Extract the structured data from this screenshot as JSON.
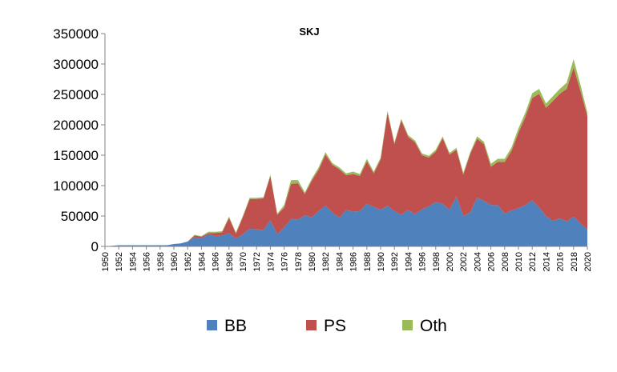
{
  "chart_data": {
    "type": "area",
    "stacked": true,
    "title": "SKJ",
    "xlabel": "",
    "ylabel": "",
    "ylim": [
      0,
      350000
    ],
    "yticks": [
      "0",
      "50000",
      "100000",
      "150000",
      "200000",
      "250000",
      "300000",
      "350000"
    ],
    "grid": false,
    "legend_position": "bottom",
    "x": [
      1950,
      1951,
      1952,
      1953,
      1954,
      1955,
      1956,
      1957,
      1958,
      1959,
      1960,
      1961,
      1962,
      1963,
      1964,
      1965,
      1966,
      1967,
      1968,
      1969,
      1970,
      1971,
      1972,
      1973,
      1974,
      1975,
      1976,
      1977,
      1978,
      1979,
      1980,
      1981,
      1982,
      1983,
      1984,
      1985,
      1986,
      1987,
      1988,
      1989,
      1990,
      1991,
      1992,
      1993,
      1994,
      1995,
      1996,
      1997,
      1998,
      1999,
      2000,
      2001,
      2002,
      2003,
      2004,
      2005,
      2006,
      2007,
      2008,
      2009,
      2010,
      2011,
      2012,
      2013,
      2014,
      2015,
      2016,
      2017,
      2018,
      2019,
      2020
    ],
    "xticks": [
      "1950",
      "1952",
      "1954",
      "1956",
      "1958",
      "1960",
      "1962",
      "1964",
      "1966",
      "1968",
      "1970",
      "1972",
      "1974",
      "1976",
      "1978",
      "1980",
      "1982",
      "1984",
      "1986",
      "1988",
      "1990",
      "1992",
      "1994",
      "1996",
      "1998",
      "2000",
      "2002",
      "2004",
      "2006",
      "2008",
      "2010",
      "2012",
      "2014",
      "2016",
      "2018",
      "2020"
    ],
    "series": [
      {
        "name": "BB",
        "color": "#4f81bd",
        "values": [
          0,
          1000,
          2000,
          2000,
          2000,
          2000,
          2000,
          2000,
          2000,
          2000,
          4000,
          5000,
          8000,
          15000,
          13000,
          20000,
          17000,
          18000,
          22000,
          13000,
          20000,
          29000,
          28000,
          27000,
          43000,
          20000,
          31000,
          45000,
          44000,
          51000,
          48000,
          58000,
          67000,
          56000,
          47000,
          60000,
          57000,
          58000,
          70000,
          65000,
          60000,
          67000,
          58000,
          52000,
          60000,
          53000,
          61000,
          66000,
          73000,
          70000,
          60000,
          82000,
          50000,
          56000,
          80000,
          75000,
          68000,
          68000,
          54000,
          59000,
          63000,
          68000,
          76000,
          64000,
          50000,
          42000,
          46000,
          41000,
          49000,
          38000,
          28000
        ]
      },
      {
        "name": "PS",
        "color": "#c0504d",
        "values": [
          0,
          0,
          0,
          0,
          0,
          0,
          0,
          0,
          0,
          0,
          0,
          0,
          0,
          3000,
          3000,
          2000,
          5000,
          5000,
          25000,
          8000,
          28000,
          49000,
          50000,
          52000,
          73000,
          32000,
          33000,
          58000,
          60000,
          35000,
          60000,
          68000,
          84000,
          78000,
          80000,
          57000,
          62000,
          58000,
          70000,
          55000,
          83000,
          153000,
          110000,
          155000,
          120000,
          118000,
          89000,
          80000,
          83000,
          108000,
          91000,
          77000,
          68000,
          96000,
          97000,
          93000,
          63000,
          71000,
          85000,
          98000,
          124000,
          145000,
          168000,
          187000,
          178000,
          197000,
          205000,
          218000,
          245000,
          218000,
          186000
        ]
      },
      {
        "name": "Oth",
        "color": "#9bbb59",
        "values": [
          0,
          0,
          0,
          0,
          0,
          0,
          0,
          0,
          0,
          0,
          0,
          0,
          0,
          1000,
          1000,
          2000,
          2000,
          2000,
          2000,
          2000,
          2000,
          2000,
          2000,
          2000,
          2000,
          2000,
          4000,
          6000,
          5000,
          3000,
          3000,
          4000,
          4000,
          3000,
          3000,
          3000,
          4000,
          3000,
          4000,
          3000,
          3000,
          3000,
          3000,
          3000,
          3000,
          3000,
          3000,
          3000,
          3000,
          3000,
          3000,
          3000,
          3000,
          3000,
          4000,
          4000,
          5000,
          5000,
          5000,
          6000,
          7000,
          7000,
          8000,
          8000,
          7000,
          8000,
          8000,
          10000,
          14000,
          10000,
          6000
        ]
      }
    ]
  }
}
